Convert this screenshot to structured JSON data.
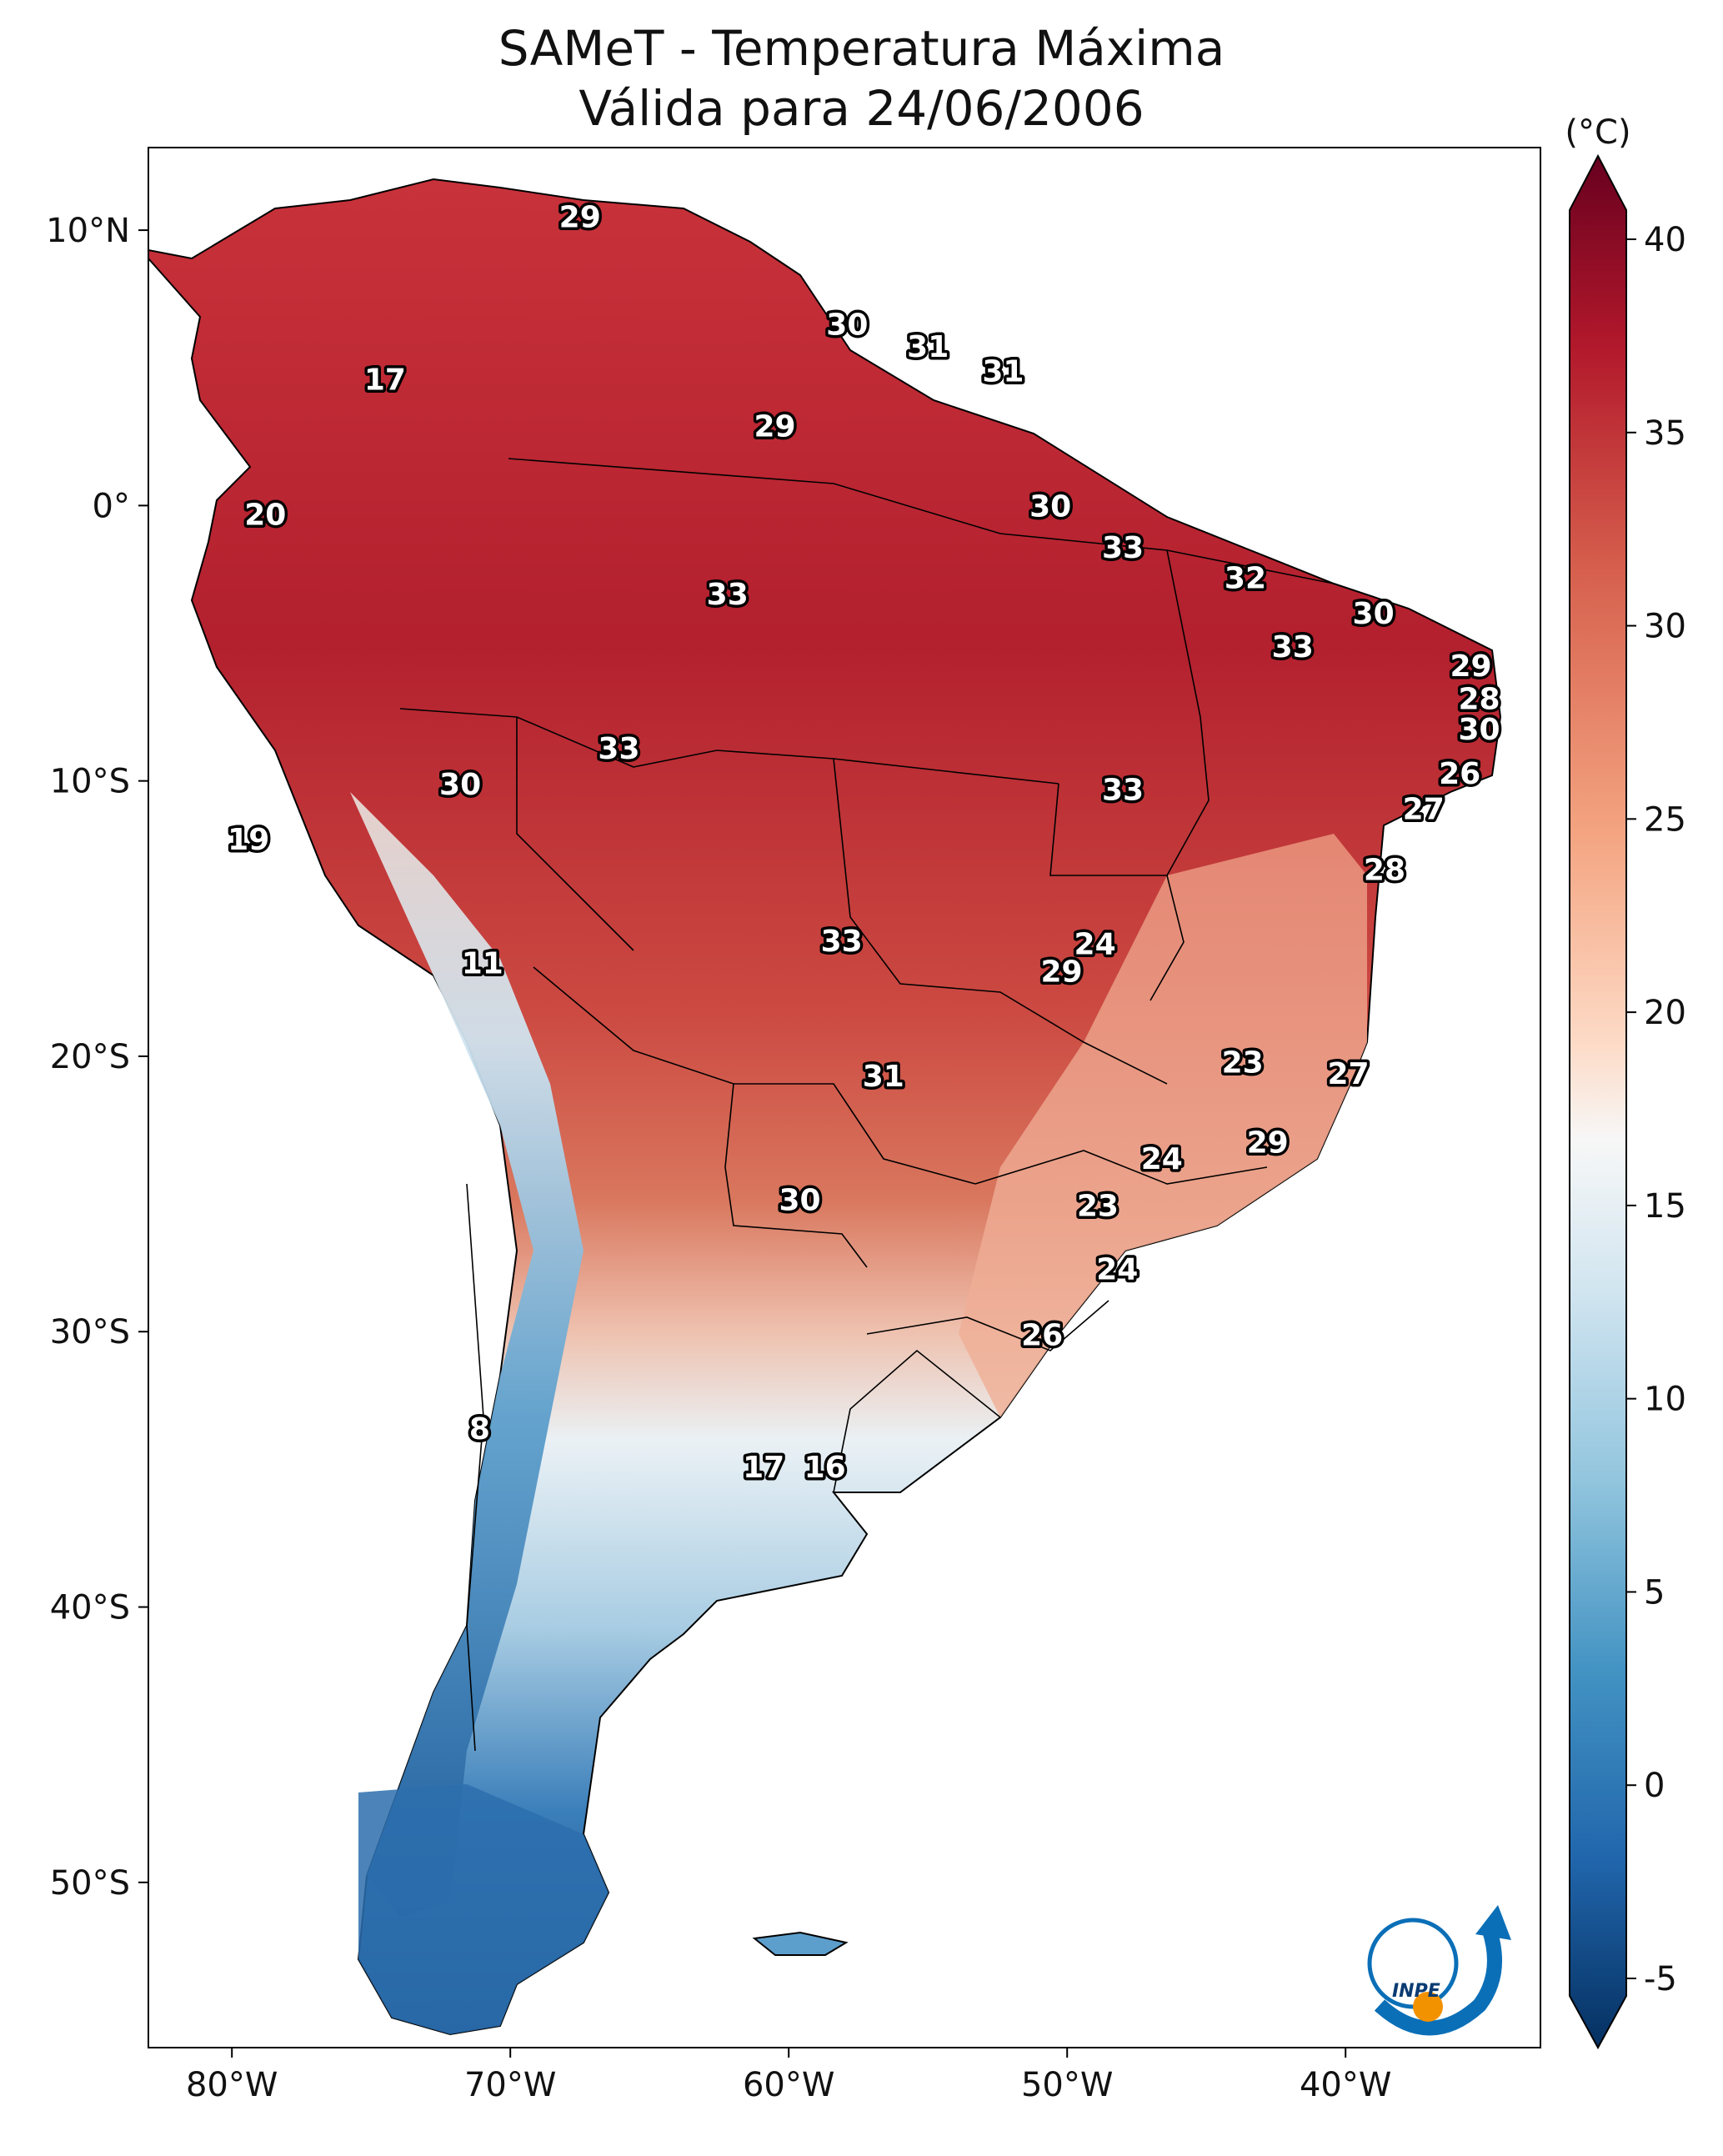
{
  "title": {
    "line1": "SAMeT - Temperatura Máxima",
    "line2": "Válida para 24/06/2006"
  },
  "colorbar": {
    "unit": "(°C)",
    "min": -5,
    "max": 40,
    "ticks": [
      "40",
      "35",
      "30",
      "25",
      "20",
      "15",
      "10",
      "5",
      "0",
      "-5"
    ],
    "tick_values": [
      40,
      35,
      30,
      25,
      20,
      15,
      10,
      5,
      0,
      -5
    ],
    "colors": [
      "#67001f",
      "#b2182b",
      "#d6604d",
      "#f4a582",
      "#fddbc7",
      "#f7f7f7",
      "#d1e5f0",
      "#92c5de",
      "#4393c3",
      "#2166ac",
      "#053061"
    ]
  },
  "axes": {
    "lon_labels": [
      "80°W",
      "70°W",
      "60°W",
      "50°W",
      "40°W"
    ],
    "lat_labels": [
      "10°N",
      "0°",
      "10°S",
      "20°S",
      "30°S",
      "40°S",
      "50°S"
    ]
  },
  "map_data": {
    "type": "map",
    "variable": "Temperatura Máxima",
    "extent": {
      "lon": [
        -83,
        -33
      ],
      "lat": [
        -56,
        13
      ]
    },
    "temperature_labels": [
      {
        "value": "29",
        "lon": -67.5,
        "lat": 10.5
      },
      {
        "value": "30",
        "lon": -57.9,
        "lat": 6.6
      },
      {
        "value": "31",
        "lon": -55.0,
        "lat": 5.8
      },
      {
        "value": "31",
        "lon": -52.3,
        "lat": 4.9
      },
      {
        "value": "17",
        "lon": -74.5,
        "lat": 4.6
      },
      {
        "value": "29",
        "lon": -60.5,
        "lat": 2.9
      },
      {
        "value": "20",
        "lon": -78.8,
        "lat": -0.3
      },
      {
        "value": "30",
        "lon": -50.6,
        "lat": 0.0
      },
      {
        "value": "33",
        "lon": -48.0,
        "lat": -1.5
      },
      {
        "value": "32",
        "lon": -43.6,
        "lat": -2.6
      },
      {
        "value": "33",
        "lon": -62.2,
        "lat": -3.2
      },
      {
        "value": "30",
        "lon": -39.0,
        "lat": -3.9
      },
      {
        "value": "33",
        "lon": -41.9,
        "lat": -5.1
      },
      {
        "value": "29",
        "lon": -35.5,
        "lat": -5.8
      },
      {
        "value": "28",
        "lon": -35.2,
        "lat": -7.0
      },
      {
        "value": "30",
        "lon": -35.2,
        "lat": -8.1
      },
      {
        "value": "33",
        "lon": -66.1,
        "lat": -8.8
      },
      {
        "value": "30",
        "lon": -71.8,
        "lat": -10.1
      },
      {
        "value": "26",
        "lon": -35.9,
        "lat": -9.7
      },
      {
        "value": "33",
        "lon": -48.0,
        "lat": -10.3
      },
      {
        "value": "27",
        "lon": -37.2,
        "lat": -11.0
      },
      {
        "value": "19",
        "lon": -79.4,
        "lat": -12.1
      },
      {
        "value": "28",
        "lon": -38.6,
        "lat": -13.2
      },
      {
        "value": "24",
        "lon": -49.0,
        "lat": -15.9
      },
      {
        "value": "33",
        "lon": -58.1,
        "lat": -15.8
      },
      {
        "value": "29",
        "lon": -50.2,
        "lat": -16.9
      },
      {
        "value": "11",
        "lon": -71.0,
        "lat": -16.6
      },
      {
        "value": "23",
        "lon": -43.7,
        "lat": -20.2
      },
      {
        "value": "27",
        "lon": -39.9,
        "lat": -20.6
      },
      {
        "value": "31",
        "lon": -56.6,
        "lat": -20.7
      },
      {
        "value": "29",
        "lon": -42.8,
        "lat": -23.1
      },
      {
        "value": "24",
        "lon": -46.6,
        "lat": -23.7
      },
      {
        "value": "30",
        "lon": -59.6,
        "lat": -25.2
      },
      {
        "value": "23",
        "lon": -48.9,
        "lat": -25.4
      },
      {
        "value": "24",
        "lon": -48.2,
        "lat": -27.7
      },
      {
        "value": "26",
        "lon": -50.9,
        "lat": -30.1
      },
      {
        "value": "8",
        "lon": -71.1,
        "lat": -33.5
      },
      {
        "value": "17",
        "lon": -60.9,
        "lat": -34.9
      },
      {
        "value": "16",
        "lon": -58.7,
        "lat": -34.9
      }
    ]
  }
}
